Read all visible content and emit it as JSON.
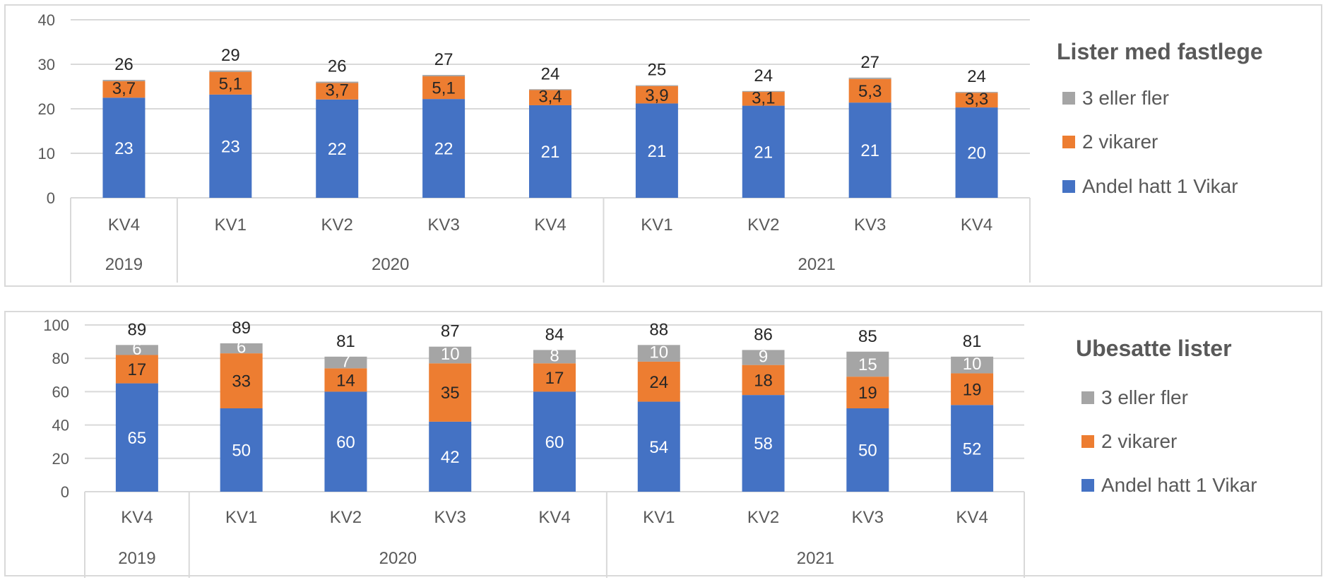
{
  "chart_data": [
    {
      "type": "bar",
      "stacked": true,
      "title": "Lister med fastlege",
      "years": [
        {
          "label": "2019",
          "categories": [
            "KV4"
          ]
        },
        {
          "label": "2020",
          "categories": [
            "KV1",
            "KV2",
            "KV3",
            "KV4"
          ]
        },
        {
          "label": "2021",
          "categories": [
            "KV1",
            "KV2",
            "KV3",
            "KV4"
          ]
        }
      ],
      "categories": [
        "KV4",
        "KV1",
        "KV2",
        "KV3",
        "KV4",
        "KV1",
        "KV2",
        "KV3",
        "KV4"
      ],
      "ylim": [
        0,
        40
      ],
      "yticks": [
        0,
        10,
        20,
        30,
        40
      ],
      "grid": true,
      "legend_position": "right",
      "series": [
        {
          "name": "Andel hatt 1 Vikar",
          "color": "#4472c4",
          "label_color": "#ffffff",
          "show_labels": true,
          "values": [
            22.5,
            23.2,
            22.1,
            22.2,
            20.8,
            21.2,
            20.7,
            21.4,
            20.3
          ],
          "labels": [
            "23",
            "23",
            "22",
            "22",
            "21",
            "21",
            "21",
            "21",
            "20"
          ]
        },
        {
          "name": "2 vikarer",
          "color": "#ed7d31",
          "label_color": "#262626",
          "show_labels": true,
          "values": [
            3.7,
            5.1,
            3.7,
            5.1,
            3.4,
            3.9,
            3.1,
            5.3,
            3.3
          ],
          "labels": [
            "3,7",
            "5,1",
            "3,7",
            "5,1",
            "3,4",
            "3,9",
            "3,1",
            "5,3",
            "3,3"
          ]
        },
        {
          "name": "3 eller fler",
          "color": "#a5a5a5",
          "label_color": "#ffffff",
          "show_labels": false,
          "values": [
            0.3,
            0.3,
            0.3,
            0.3,
            0.2,
            0.2,
            0.2,
            0.3,
            0.2
          ],
          "labels": [
            "",
            "",
            "",
            "",
            "",
            "",
            "",
            "",
            ""
          ]
        }
      ],
      "totals": [
        "26",
        "29",
        "26",
        "27",
        "24",
        "25",
        "24",
        "27",
        "24"
      ]
    },
    {
      "type": "bar",
      "stacked": true,
      "title": "Ubesatte lister",
      "years": [
        {
          "label": "2019",
          "categories": [
            "KV4"
          ]
        },
        {
          "label": "2020",
          "categories": [
            "KV1",
            "KV2",
            "KV3",
            "KV4"
          ]
        },
        {
          "label": "2021",
          "categories": [
            "KV1",
            "KV2",
            "KV3",
            "KV4"
          ]
        }
      ],
      "categories": [
        "KV4",
        "KV1",
        "KV2",
        "KV3",
        "KV4",
        "KV1",
        "KV2",
        "KV3",
        "KV4"
      ],
      "ylim": [
        0,
        100
      ],
      "yticks": [
        0,
        20,
        40,
        60,
        80,
        100
      ],
      "grid": true,
      "legend_position": "right",
      "series": [
        {
          "name": "Andel hatt 1 Vikar",
          "color": "#4472c4",
          "label_color": "#ffffff",
          "show_labels": true,
          "values": [
            65,
            50,
            60,
            42,
            60,
            54,
            58,
            50,
            52
          ],
          "labels": [
            "65",
            "50",
            "60",
            "42",
            "60",
            "54",
            "58",
            "50",
            "52"
          ]
        },
        {
          "name": "2 vikarer",
          "color": "#ed7d31",
          "label_color": "#262626",
          "show_labels": true,
          "values": [
            17,
            33,
            14,
            35,
            17,
            24,
            18,
            19,
            19
          ],
          "labels": [
            "17",
            "33",
            "14",
            "35",
            "17",
            "24",
            "18",
            "19",
            "19"
          ]
        },
        {
          "name": "3 eller fler",
          "color": "#a5a5a5",
          "label_color": "#ffffff",
          "show_labels": true,
          "values": [
            6,
            6,
            7,
            10,
            8,
            10,
            9,
            15,
            10
          ],
          "labels": [
            "6",
            "6",
            "7",
            "10",
            "8",
            "10",
            "9",
            "15",
            "10"
          ]
        }
      ],
      "totals": [
        "89",
        "89",
        "81",
        "87",
        "84",
        "88",
        "86",
        "85",
        "81"
      ]
    }
  ]
}
